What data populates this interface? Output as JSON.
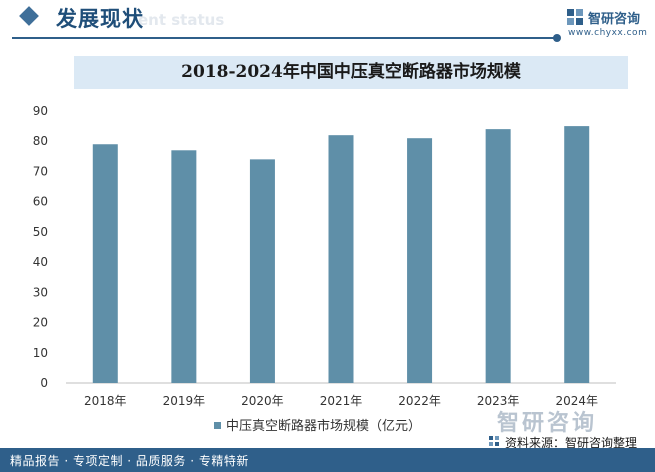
{
  "header": {
    "title": "发展现状",
    "title_ghost": "ent status"
  },
  "brand": {
    "name": "智研咨询",
    "url": "www.chyxx.com"
  },
  "watermark": "智研咨询",
  "chart_data": {
    "type": "bar",
    "title": "2018-2024年中国中压真空断路器市场规模",
    "categories": [
      "2018年",
      "2019年",
      "2020年",
      "2021年",
      "2022年",
      "2023年",
      "2024年"
    ],
    "series": [
      {
        "name": "中压真空断路器市场规模（亿元）",
        "values": [
          79,
          77,
          74,
          82,
          81,
          84,
          85
        ]
      }
    ],
    "ylim": [
      0,
      90
    ],
    "yticks": [
      0,
      10,
      20,
      30,
      40,
      50,
      60,
      70,
      80,
      90
    ],
    "legend_position": "bottom",
    "grid": false,
    "colors": {
      "bar": "#5f8fa8"
    }
  },
  "footer": {
    "left_text": "精品报告 · 专项定制 · 品质服务 · 专精特新",
    "source": "资料来源：智研咨询整理"
  }
}
